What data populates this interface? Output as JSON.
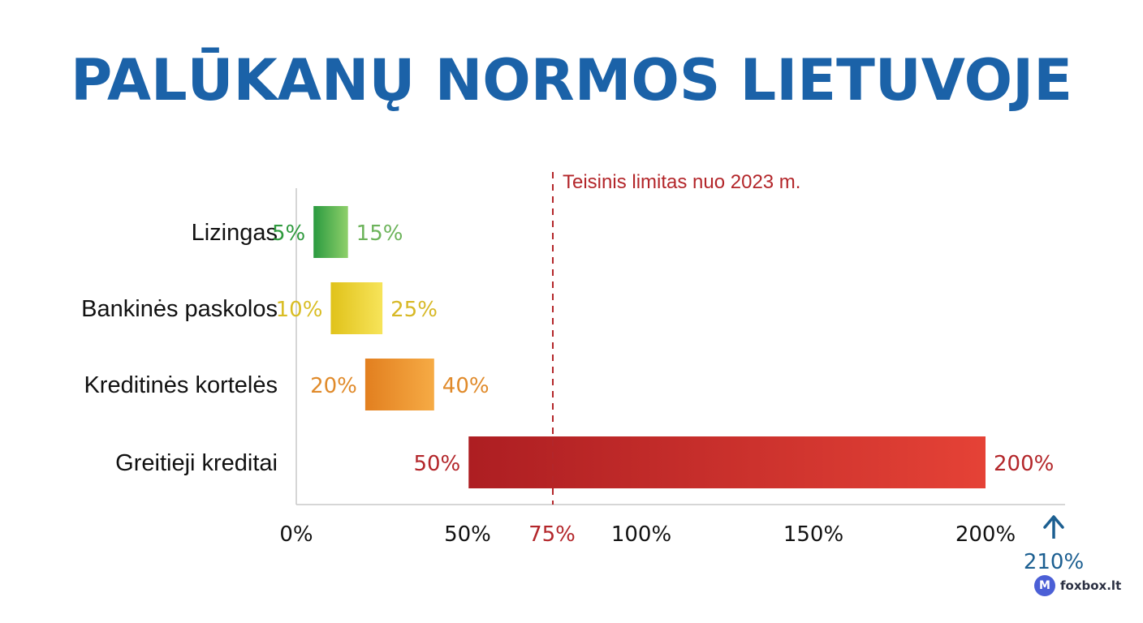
{
  "title": "PALŪKANŲ NORMOS LIETUVOJE",
  "chart_data": {
    "type": "bar",
    "subtype": "floating-range-horizontal",
    "title": "PALŪKANŲ NORMOS LIETUVOJE",
    "categories": [
      "Lizingas",
      "Bankinės paskolos",
      "Kreditinės kortelės",
      "Greitieji kreditai"
    ],
    "ranges": [
      {
        "low": 5,
        "high": 15,
        "low_label": "5%",
        "high_label": "15%",
        "color_start": "#2a9a40",
        "color_end": "#8fd06a",
        "low_label_color": "#2f9a3e",
        "high_label_color": "#6cb35a"
      },
      {
        "low": 10,
        "high": 25,
        "low_label": "10%",
        "high_label": "25%",
        "color_start": "#e0c21a",
        "color_end": "#f7e45a",
        "low_label_color": "#d9bd24",
        "high_label_color": "#d7b825"
      },
      {
        "low": 20,
        "high": 40,
        "low_label": "20%",
        "high_label": "40%",
        "color_start": "#e27f1f",
        "color_end": "#f6ab45",
        "low_label_color": "#e08a2a",
        "high_label_color": "#e08a2a"
      },
      {
        "low": 50,
        "high": 200,
        "low_label": "50%",
        "high_label": "200%",
        "color_start": "#ad1e22",
        "color_end": "#e54236",
        "low_label_color": "#b3262a",
        "high_label_color": "#b3262a"
      }
    ],
    "x_ticks": [
      {
        "label": "0%",
        "color": "#111111"
      },
      {
        "label": "50%",
        "color": "#111111"
      },
      {
        "label": "75%",
        "color": "#b3262a"
      },
      {
        "label": "100%",
        "color": "#111111"
      },
      {
        "label": "150%",
        "color": "#111111"
      },
      {
        "label": "200%",
        "color": "#111111"
      }
    ],
    "axis_extension_label": "210%",
    "axis_extension_color": "#1c5f91",
    "reference_line": {
      "value": 75,
      "label": "Teisinis limitas nuo 2023 m.",
      "color": "#b3262a"
    },
    "grid": false,
    "legend": "none"
  },
  "brand": {
    "logo_letter": "M",
    "name": "foxbox.lt"
  }
}
